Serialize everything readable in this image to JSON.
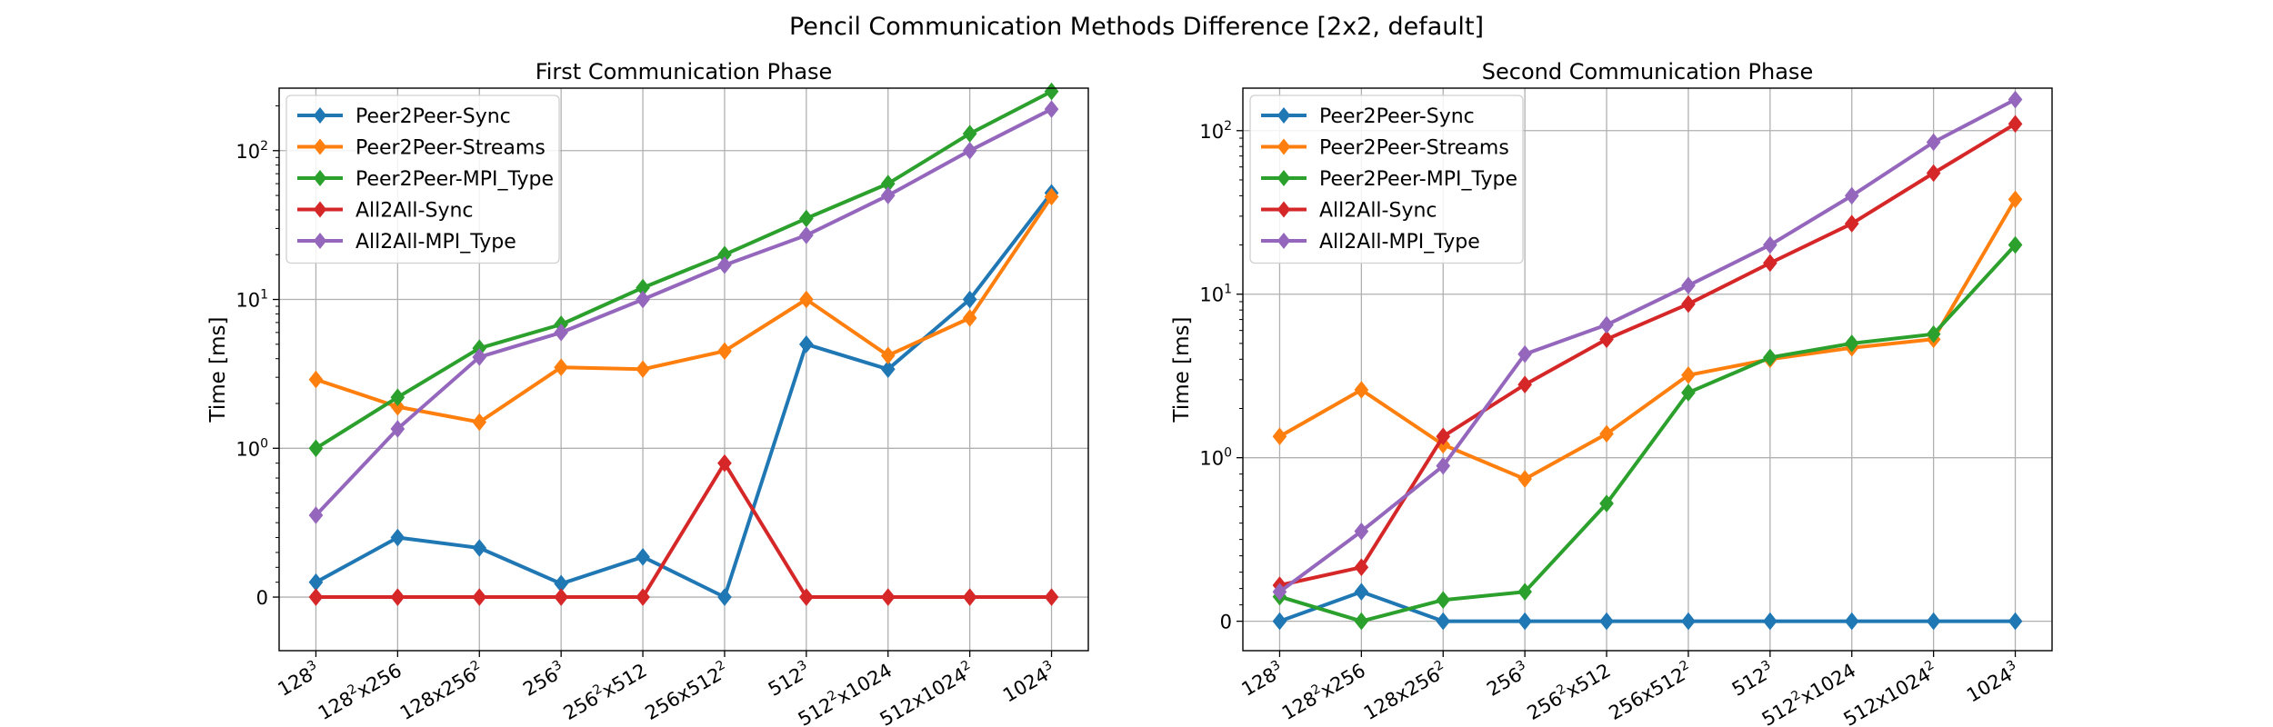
{
  "figure": {
    "title": "Pencil Communication Methods Difference [2x2, default]"
  },
  "chart_data": [
    {
      "type": "line",
      "title": "First Communication Phase",
      "xlabel": "",
      "ylabel": "Time [ms]",
      "yscale": "symlog",
      "grid": true,
      "legend": "top-left",
      "categories": [
        {
          "base": "128",
          "sup": "3",
          "rest": ""
        },
        {
          "base": "128",
          "sup": "2",
          "rest": "x256"
        },
        {
          "base": "128x256",
          "sup": "2",
          "rest": ""
        },
        {
          "base": "256",
          "sup": "3",
          "rest": ""
        },
        {
          "base": "256",
          "sup": "2",
          "rest": "x512"
        },
        {
          "base": "256x512",
          "sup": "2",
          "rest": ""
        },
        {
          "base": "512",
          "sup": "3",
          "rest": ""
        },
        {
          "base": "512",
          "sup": "2",
          "rest": "x1024"
        },
        {
          "base": "512x1024",
          "sup": "2",
          "rest": ""
        },
        {
          "base": "1024",
          "sup": "3",
          "rest": ""
        }
      ],
      "yticks": [
        0,
        1,
        10,
        100
      ],
      "yticklabels": [
        {
          "base": "0",
          "sup": ""
        },
        {
          "base": "10",
          "sup": "0"
        },
        {
          "base": "10",
          "sup": "1"
        },
        {
          "base": "10",
          "sup": "2"
        }
      ],
      "series": [
        {
          "name": "Peer2Peer-Sync",
          "color": "#1f77b4",
          "values": [
            0.1,
            0.4,
            0.33,
            0.09,
            0.27,
            0.0,
            5.0,
            3.4,
            10.0,
            52
          ]
        },
        {
          "name": "Peer2Peer-Streams",
          "color": "#ff7f0e",
          "values": [
            2.9,
            1.9,
            1.5,
            3.5,
            3.4,
            4.5,
            10.0,
            4.2,
            7.5,
            49
          ]
        },
        {
          "name": "Peer2Peer-MPI_Type",
          "color": "#2ca02c",
          "values": [
            1.0,
            2.2,
            4.7,
            6.8,
            12,
            20,
            35,
            60,
            130,
            250
          ]
        },
        {
          "name": "All2All-Sync",
          "color": "#d62728",
          "values": [
            0.0,
            0.0,
            0.0,
            0.0,
            0.0,
            0.9,
            0.0,
            0.0,
            0.0,
            0.0
          ]
        },
        {
          "name": "All2All-MPI_Type",
          "color": "#9467bd",
          "values": [
            0.55,
            1.35,
            4.1,
            6.0,
            10,
            17,
            27,
            50,
            100,
            190
          ]
        }
      ]
    },
    {
      "type": "line",
      "title": "Second Communication Phase",
      "xlabel": "",
      "ylabel": "Time [ms]",
      "yscale": "symlog",
      "grid": true,
      "legend": "top-left",
      "categories": [
        {
          "base": "128",
          "sup": "3",
          "rest": ""
        },
        {
          "base": "128",
          "sup": "2",
          "rest": "x256"
        },
        {
          "base": "128x256",
          "sup": "2",
          "rest": ""
        },
        {
          "base": "256",
          "sup": "3",
          "rest": ""
        },
        {
          "base": "256",
          "sup": "2",
          "rest": "x512"
        },
        {
          "base": "256x512",
          "sup": "2",
          "rest": ""
        },
        {
          "base": "512",
          "sup": "3",
          "rest": ""
        },
        {
          "base": "512",
          "sup": "2",
          "rest": "x1024"
        },
        {
          "base": "512x1024",
          "sup": "2",
          "rest": ""
        },
        {
          "base": "1024",
          "sup": "3",
          "rest": ""
        }
      ],
      "yticks": [
        0,
        1,
        10,
        100
      ],
      "yticklabels": [
        {
          "base": "0",
          "sup": ""
        },
        {
          "base": "10",
          "sup": "0"
        },
        {
          "base": "10",
          "sup": "1"
        },
        {
          "base": "10",
          "sup": "2"
        }
      ],
      "series": [
        {
          "name": "Peer2Peer-Sync",
          "color": "#1f77b4",
          "values": [
            0.0,
            0.18,
            0.0,
            0.0,
            0.0,
            0.0,
            0.0,
            0.0,
            0.0,
            0.0
          ]
        },
        {
          "name": "Peer2Peer-Streams",
          "color": "#ff7f0e",
          "values": [
            1.35,
            2.6,
            1.2,
            0.87,
            1.4,
            3.2,
            4.0,
            4.7,
            5.3,
            38
          ]
        },
        {
          "name": "Peer2Peer-MPI_Type",
          "color": "#2ca02c",
          "values": [
            0.15,
            0.0,
            0.13,
            0.18,
            0.72,
            2.5,
            4.1,
            5.0,
            5.7,
            20
          ]
        },
        {
          "name": "All2All-Sync",
          "color": "#d62728",
          "values": [
            0.22,
            0.33,
            1.35,
            2.8,
            5.3,
            8.7,
            15.5,
            27,
            55,
            110
          ]
        },
        {
          "name": "All2All-MPI_Type",
          "color": "#9467bd",
          "values": [
            0.18,
            0.55,
            0.95,
            4.3,
            6.5,
            11.3,
            20,
            40,
            85,
            155
          ]
        }
      ]
    }
  ]
}
